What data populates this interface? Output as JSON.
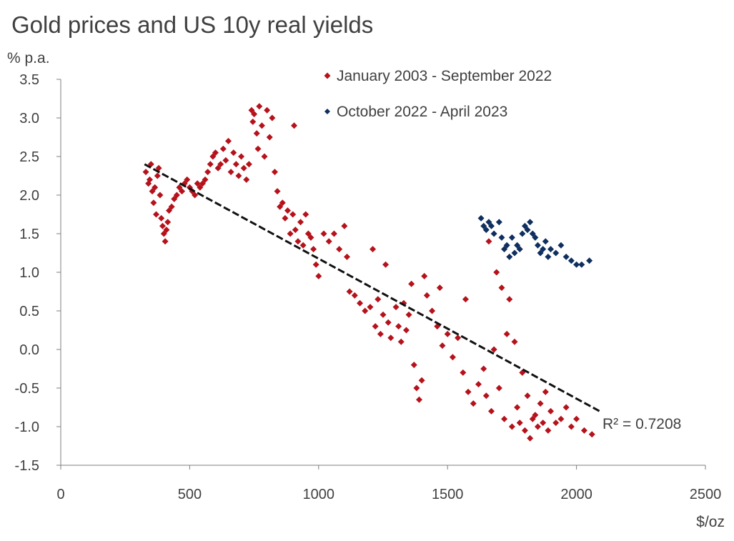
{
  "chart_data": {
    "type": "scatter",
    "title": "Gold prices and US 10y real yields",
    "ylabel": "% p.a.",
    "xlabel": "$/oz",
    "xlim": [
      0,
      2500
    ],
    "ylim": [
      -1.5,
      3.5
    ],
    "xticks": [
      "0",
      "500",
      "1000",
      "1500",
      "2000",
      "2500"
    ],
    "yticks": [
      "3.5",
      "3.0",
      "2.5",
      "2.0",
      "1.5",
      "1.0",
      "0.5",
      "0.0",
      "-0.5",
      "-1.0",
      "-1.5"
    ],
    "grid": false,
    "legend_position": "top",
    "annotation": "R² = 0.7208",
    "trendline": {
      "x": [
        325,
        2090
      ],
      "y": [
        2.4,
        -0.8
      ]
    },
    "series": [
      {
        "name": "January 2003 - September 2022",
        "color": "#b5121b",
        "marker": "diamond",
        "points": [
          [
            330,
            2.3
          ],
          [
            340,
            2.15
          ],
          [
            345,
            2.2
          ],
          [
            350,
            2.4
          ],
          [
            355,
            2.05
          ],
          [
            360,
            1.9
          ],
          [
            365,
            2.1
          ],
          [
            370,
            1.75
          ],
          [
            375,
            2.25
          ],
          [
            380,
            2.35
          ],
          [
            385,
            2.0
          ],
          [
            390,
            1.7
          ],
          [
            395,
            1.6
          ],
          [
            400,
            1.5
          ],
          [
            405,
            1.4
          ],
          [
            410,
            1.55
          ],
          [
            415,
            1.65
          ],
          [
            420,
            1.8
          ],
          [
            430,
            1.85
          ],
          [
            440,
            1.95
          ],
          [
            450,
            2.0
          ],
          [
            460,
            2.1
          ],
          [
            470,
            2.05
          ],
          [
            480,
            2.15
          ],
          [
            490,
            2.2
          ],
          [
            500,
            2.1
          ],
          [
            510,
            2.05
          ],
          [
            520,
            2.0
          ],
          [
            530,
            2.15
          ],
          [
            540,
            2.1
          ],
          [
            550,
            2.15
          ],
          [
            560,
            2.2
          ],
          [
            570,
            2.3
          ],
          [
            580,
            2.4
          ],
          [
            590,
            2.5
          ],
          [
            600,
            2.55
          ],
          [
            610,
            2.35
          ],
          [
            620,
            2.4
          ],
          [
            630,
            2.6
          ],
          [
            640,
            2.45
          ],
          [
            650,
            2.7
          ],
          [
            660,
            2.3
          ],
          [
            670,
            2.55
          ],
          [
            680,
            2.4
          ],
          [
            690,
            2.25
          ],
          [
            700,
            2.5
          ],
          [
            710,
            2.35
          ],
          [
            720,
            2.2
          ],
          [
            730,
            2.4
          ],
          [
            740,
            3.1
          ],
          [
            745,
            2.95
          ],
          [
            750,
            3.05
          ],
          [
            760,
            2.8
          ],
          [
            765,
            2.6
          ],
          [
            770,
            3.15
          ],
          [
            780,
            2.9
          ],
          [
            790,
            2.5
          ],
          [
            800,
            3.1
          ],
          [
            810,
            2.75
          ],
          [
            820,
            3.0
          ],
          [
            830,
            2.3
          ],
          [
            840,
            2.05
          ],
          [
            850,
            1.85
          ],
          [
            860,
            1.9
          ],
          [
            870,
            1.7
          ],
          [
            880,
            1.8
          ],
          [
            890,
            1.5
          ],
          [
            900,
            1.75
          ],
          [
            905,
            2.9
          ],
          [
            910,
            1.55
          ],
          [
            920,
            1.4
          ],
          [
            930,
            1.65
          ],
          [
            940,
            1.35
          ],
          [
            950,
            1.75
          ],
          [
            960,
            1.5
          ],
          [
            970,
            1.45
          ],
          [
            980,
            1.3
          ],
          [
            990,
            1.1
          ],
          [
            1000,
            0.95
          ],
          [
            1020,
            1.5
          ],
          [
            1040,
            1.4
          ],
          [
            1060,
            1.5
          ],
          [
            1080,
            1.3
          ],
          [
            1100,
            1.6
          ],
          [
            1110,
            1.2
          ],
          [
            1120,
            0.75
          ],
          [
            1140,
            0.7
          ],
          [
            1160,
            0.6
          ],
          [
            1180,
            0.5
          ],
          [
            1200,
            0.55
          ],
          [
            1210,
            1.3
          ],
          [
            1220,
            0.3
          ],
          [
            1230,
            0.65
          ],
          [
            1240,
            0.2
          ],
          [
            1250,
            0.45
          ],
          [
            1260,
            1.1
          ],
          [
            1270,
            0.35
          ],
          [
            1280,
            0.15
          ],
          [
            1300,
            0.55
          ],
          [
            1310,
            0.3
          ],
          [
            1320,
            0.1
          ],
          [
            1330,
            0.6
          ],
          [
            1340,
            0.25
          ],
          [
            1350,
            0.45
          ],
          [
            1360,
            0.85
          ],
          [
            1370,
            -0.2
          ],
          [
            1380,
            -0.5
          ],
          [
            1390,
            -0.65
          ],
          [
            1400,
            -0.4
          ],
          [
            1410,
            0.95
          ],
          [
            1420,
            0.7
          ],
          [
            1440,
            0.5
          ],
          [
            1460,
            0.3
          ],
          [
            1470,
            0.8
          ],
          [
            1480,
            0.05
          ],
          [
            1500,
            0.2
          ],
          [
            1520,
            -0.1
          ],
          [
            1540,
            0.15
          ],
          [
            1560,
            -0.3
          ],
          [
            1570,
            0.65
          ],
          [
            1580,
            -0.55
          ],
          [
            1600,
            -0.7
          ],
          [
            1620,
            -0.45
          ],
          [
            1640,
            -0.25
          ],
          [
            1650,
            -0.6
          ],
          [
            1660,
            1.4
          ],
          [
            1670,
            -0.8
          ],
          [
            1680,
            0.0
          ],
          [
            1690,
            1.0
          ],
          [
            1700,
            -0.5
          ],
          [
            1710,
            0.8
          ],
          [
            1720,
            -0.9
          ],
          [
            1730,
            0.2
          ],
          [
            1740,
            0.65
          ],
          [
            1750,
            -1.0
          ],
          [
            1760,
            0.1
          ],
          [
            1770,
            -0.75
          ],
          [
            1780,
            -0.95
          ],
          [
            1790,
            -0.3
          ],
          [
            1800,
            -1.05
          ],
          [
            1810,
            -0.6
          ],
          [
            1820,
            -1.15
          ],
          [
            1830,
            -0.9
          ],
          [
            1840,
            -0.85
          ],
          [
            1850,
            -1.0
          ],
          [
            1860,
            -0.7
          ],
          [
            1870,
            -0.95
          ],
          [
            1880,
            -0.55
          ],
          [
            1890,
            -1.05
          ],
          [
            1900,
            -0.8
          ],
          [
            1920,
            -0.95
          ],
          [
            1940,
            -0.9
          ],
          [
            1960,
            -0.75
          ],
          [
            1980,
            -1.0
          ],
          [
            2000,
            -0.9
          ],
          [
            2030,
            -1.05
          ],
          [
            2060,
            -1.1
          ]
        ]
      },
      {
        "name": "October 2022 - April 2023",
        "color": "#0f2f5f",
        "marker": "diamond",
        "points": [
          [
            1630,
            1.7
          ],
          [
            1640,
            1.6
          ],
          [
            1650,
            1.55
          ],
          [
            1660,
            1.65
          ],
          [
            1670,
            1.6
          ],
          [
            1680,
            1.5
          ],
          [
            1700,
            1.65
          ],
          [
            1710,
            1.45
          ],
          [
            1720,
            1.3
          ],
          [
            1730,
            1.35
          ],
          [
            1740,
            1.2
          ],
          [
            1750,
            1.45
          ],
          [
            1760,
            1.25
          ],
          [
            1770,
            1.35
          ],
          [
            1780,
            1.3
          ],
          [
            1790,
            1.5
          ],
          [
            1800,
            1.6
          ],
          [
            1810,
            1.55
          ],
          [
            1820,
            1.65
          ],
          [
            1830,
            1.5
          ],
          [
            1840,
            1.45
          ],
          [
            1850,
            1.35
          ],
          [
            1860,
            1.25
          ],
          [
            1870,
            1.3
          ],
          [
            1880,
            1.4
          ],
          [
            1890,
            1.2
          ],
          [
            1900,
            1.3
          ],
          [
            1920,
            1.25
          ],
          [
            1940,
            1.35
          ],
          [
            1960,
            1.2
          ],
          [
            1980,
            1.15
          ],
          [
            2000,
            1.1
          ],
          [
            2020,
            1.1
          ],
          [
            2050,
            1.15
          ]
        ]
      }
    ]
  }
}
